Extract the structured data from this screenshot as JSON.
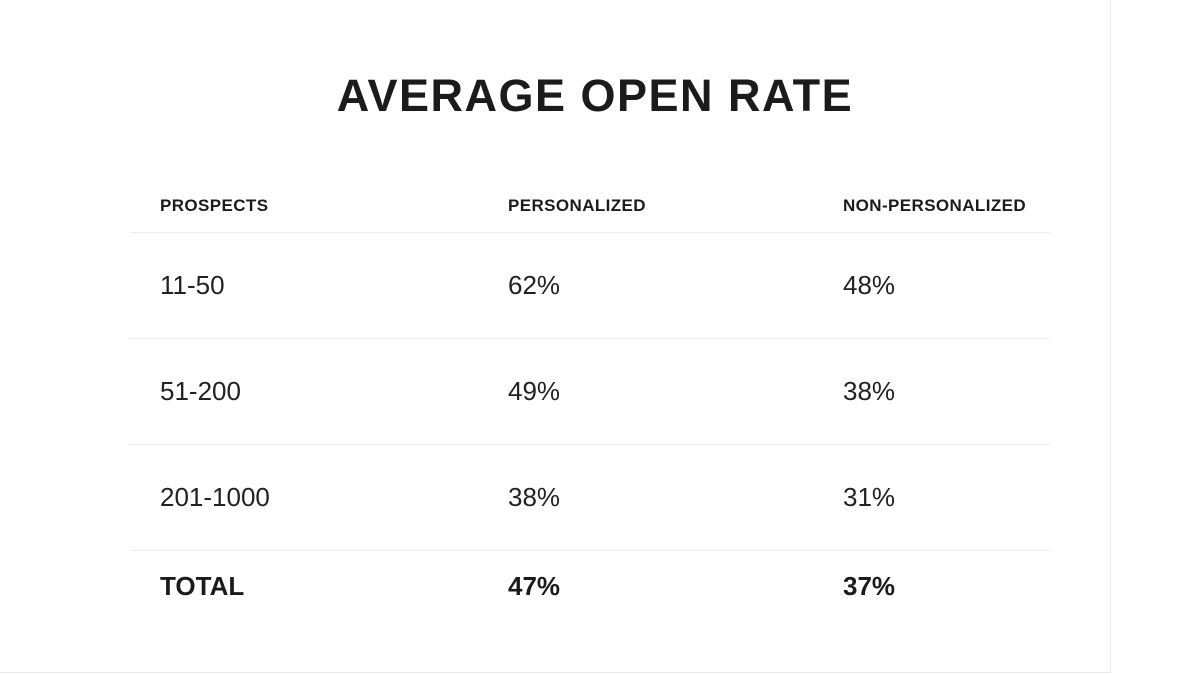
{
  "slide": {
    "title": "AVERAGE OPEN RATE"
  },
  "chart_data": {
    "type": "table",
    "title": "AVERAGE OPEN RATE",
    "columns": [
      "PROSPECTS",
      "PERSONALIZED",
      "NON-PERSONALIZED"
    ],
    "rows": [
      [
        "11-50",
        "62%",
        "48%"
      ],
      [
        "51-200",
        "49%",
        "38%"
      ],
      [
        "201-1000",
        "38%",
        "31%"
      ]
    ],
    "total_row": [
      "TOTAL",
      "47%",
      "37%"
    ],
    "series": [
      {
        "name": "PERSONALIZED",
        "values_pct": [
          62,
          49,
          38
        ],
        "total_pct": 47
      },
      {
        "name": "NON-PERSONALIZED",
        "values_pct": [
          48,
          38,
          31
        ],
        "total_pct": 37
      }
    ],
    "prospect_buckets": [
      "11-50",
      "51-200",
      "201-1000"
    ]
  },
  "colors": {
    "background": "#ffffff",
    "text": "#1b1b1b",
    "divider": "#ececec",
    "slide_edge": "#e8e8e8"
  }
}
